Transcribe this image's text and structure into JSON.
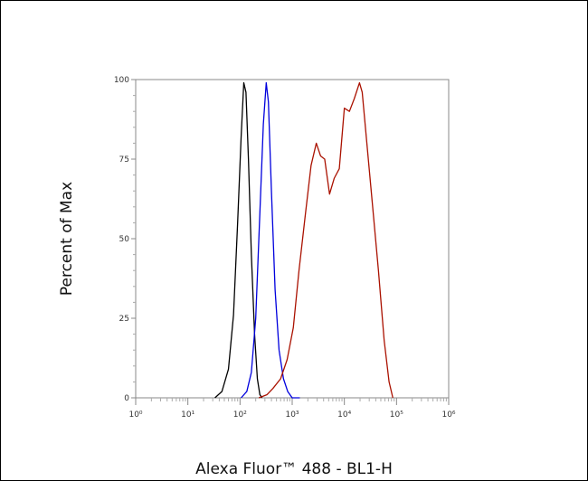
{
  "chart_data": {
    "type": "line",
    "title": "",
    "xlabel": "Alexa Fluor™ 488 - BL1-H",
    "ylabel": "Percent of Max",
    "x_scale": "log",
    "xlim": [
      1,
      1000000
    ],
    "ylim": [
      0,
      100
    ],
    "x_ticks": [
      {
        "value": 1,
        "label": "10⁰"
      },
      {
        "value": 10,
        "label": "10¹"
      },
      {
        "value": 100,
        "label": "10²"
      },
      {
        "value": 1000,
        "label": "10³"
      },
      {
        "value": 10000,
        "label": "10⁴"
      },
      {
        "value": 100000,
        "label": "10⁵"
      },
      {
        "value": 1000000,
        "label": "10⁶"
      }
    ],
    "y_ticks": [
      {
        "value": 0,
        "label": "0"
      },
      {
        "value": 25,
        "label": "25"
      },
      {
        "value": 50,
        "label": "50"
      },
      {
        "value": 75,
        "label": "75"
      },
      {
        "value": 100,
        "label": "100"
      }
    ],
    "grid": false,
    "legend": "none",
    "series": [
      {
        "color": "#000000",
        "points": [
          [
            33,
            0
          ],
          [
            45,
            2
          ],
          [
            60,
            9
          ],
          [
            75,
            26
          ],
          [
            90,
            55
          ],
          [
            105,
            82
          ],
          [
            118,
            99
          ],
          [
            130,
            96
          ],
          [
            145,
            75
          ],
          [
            165,
            45
          ],
          [
            190,
            20
          ],
          [
            215,
            6
          ],
          [
            240,
            1
          ],
          [
            265,
            0
          ]
        ]
      },
      {
        "color": "#0000dd",
        "points": [
          [
            105,
            0
          ],
          [
            135,
            2
          ],
          [
            165,
            8
          ],
          [
            200,
            25
          ],
          [
            240,
            58
          ],
          [
            280,
            86
          ],
          [
            318,
            99
          ],
          [
            350,
            93
          ],
          [
            400,
            65
          ],
          [
            470,
            34
          ],
          [
            560,
            15
          ],
          [
            680,
            6
          ],
          [
            820,
            2
          ],
          [
            1000,
            0
          ],
          [
            1400,
            0
          ]
        ]
      },
      {
        "color": "#aa1100",
        "points": [
          [
            230,
            0
          ],
          [
            330,
            1
          ],
          [
            430,
            3
          ],
          [
            600,
            6
          ],
          [
            800,
            12
          ],
          [
            1050,
            22
          ],
          [
            1350,
            40
          ],
          [
            1800,
            58
          ],
          [
            2300,
            73
          ],
          [
            2900,
            80
          ],
          [
            3500,
            76
          ],
          [
            4200,
            75
          ],
          [
            5200,
            64
          ],
          [
            6400,
            69
          ],
          [
            8000,
            72
          ],
          [
            10000,
            91
          ],
          [
            12500,
            90
          ],
          [
            15500,
            94
          ],
          [
            19500,
            99
          ],
          [
            22000,
            96
          ],
          [
            27000,
            80
          ],
          [
            34000,
            62
          ],
          [
            45000,
            40
          ],
          [
            58000,
            18
          ],
          [
            72000,
            5
          ],
          [
            85000,
            0
          ]
        ]
      }
    ]
  }
}
